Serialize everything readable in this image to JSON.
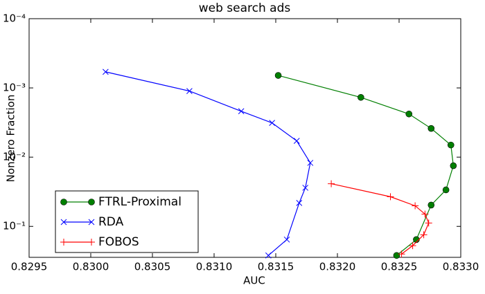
{
  "chart_data": {
    "type": "line",
    "title": "web search ads",
    "x_label": "AUC",
    "y_label": "Nonzero Fraction",
    "xlim": [
      0.8295,
      0.833
    ],
    "xticks": [
      0.8295,
      {
        "value": 0.83,
        "label": "0.8300"
      },
      0.8305,
      {
        "value": 0.831,
        "label": "0.8310"
      },
      0.8315,
      {
        "value": 0.832,
        "label": "0.8320"
      },
      0.8325,
      {
        "value": 0.833,
        "label": "0.8330"
      }
    ],
    "ylim": [
      0.0001,
      0.28
    ],
    "y_log": true,
    "y_inverted": true,
    "yticks": [
      {
        "value": 0.0001,
        "label": "10⁻⁴"
      },
      {
        "value": 0.001,
        "label": "10⁻³"
      },
      {
        "value": 0.01,
        "label": "10⁻²"
      },
      {
        "value": 0.1,
        "label": "10⁻¹"
      }
    ],
    "legend": "lower left",
    "series": [
      {
        "name": "FTRL-Proximal",
        "color": "#007f00",
        "marker": "circle",
        "x": [
          0.83152,
          0.83219,
          0.83258,
          0.83276,
          0.83292,
          0.83294,
          0.83288,
          0.83276,
          0.83264,
          0.83248
        ],
        "values": [
          0.00066,
          0.00137,
          0.00238,
          0.00385,
          0.00668,
          0.0133,
          0.0297,
          0.0492,
          0.155,
          0.263
        ]
      },
      {
        "name": "RDA",
        "color": "#0000ff",
        "marker": "x",
        "x": [
          0.83012,
          0.8308,
          0.83122,
          0.83147,
          0.83167,
          0.83178,
          0.83174,
          0.83169,
          0.83159,
          0.83144
        ],
        "values": [
          0.000586,
          0.00111,
          0.00217,
          0.0032,
          0.00582,
          0.0121,
          0.0277,
          0.0459,
          0.155,
          0.263
        ]
      },
      {
        "name": "FOBOS",
        "color": "#ff0000",
        "marker": "plus",
        "x": [
          0.83195,
          0.83243,
          0.83263,
          0.83271,
          0.83274,
          0.8327,
          0.83261,
          0.83252
        ],
        "values": [
          0.0242,
          0.0373,
          0.0504,
          0.0664,
          0.0893,
          0.132,
          0.19,
          0.251
        ]
      }
    ]
  }
}
